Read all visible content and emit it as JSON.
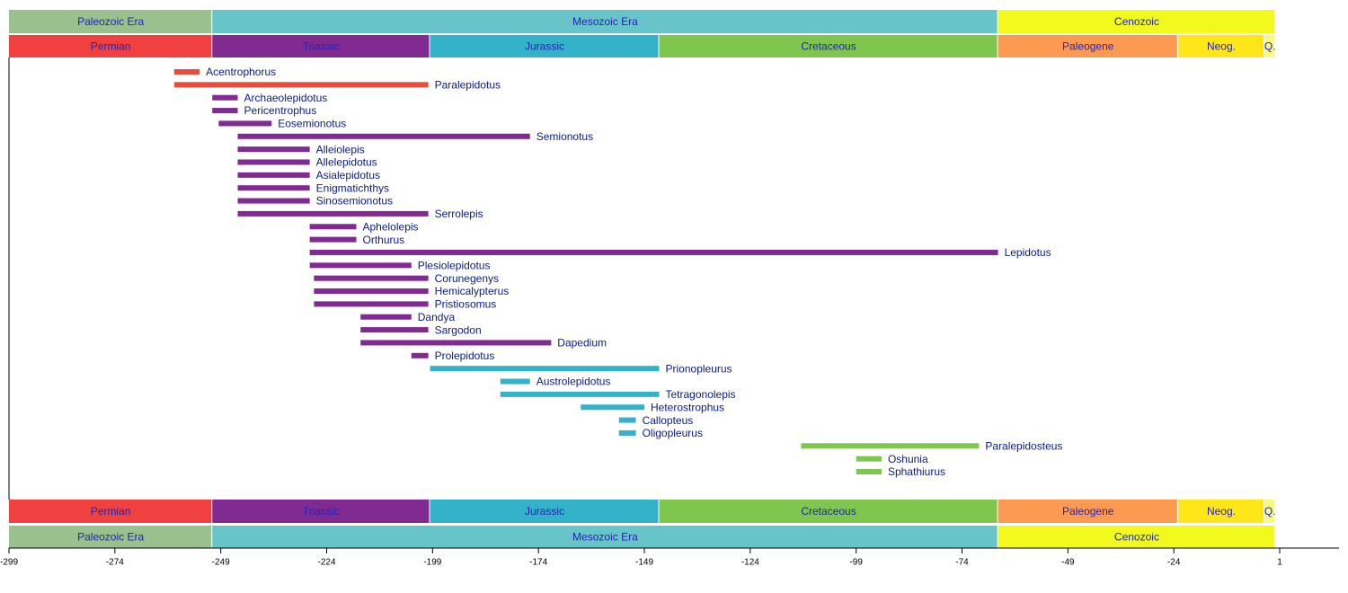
{
  "chart_data": {
    "type": "timeline",
    "xlim": [
      -299,
      15
    ],
    "xticks": [
      -299,
      -274,
      -249,
      -224,
      -199,
      -174,
      -149,
      -124,
      -99,
      -74,
      -49,
      -24,
      1
    ],
    "eras": [
      {
        "name": "Paleozoic Era",
        "start": -299,
        "end": -251,
        "color": "#99c08d"
      },
      {
        "name": "Mesozoic Era",
        "start": -251,
        "end": -65.5,
        "color": "#67c5ca"
      },
      {
        "name": "Cenozoic",
        "start": -65.5,
        "end": 0,
        "color": "#f2f91d"
      }
    ],
    "periods": [
      {
        "name": "Permian",
        "start": -299,
        "end": -251,
        "color": "#f04040"
      },
      {
        "name": "Triassic",
        "start": -251,
        "end": -199.6,
        "color": "#812b92"
      },
      {
        "name": "Jurassic",
        "start": -199.6,
        "end": -145.5,
        "color": "#34b2c9"
      },
      {
        "name": "Cretaceous",
        "start": -145.5,
        "end": -65.5,
        "color": "#7fc64e"
      },
      {
        "name": "Paleogene",
        "start": -65.5,
        "end": -23,
        "color": "#fd9a52"
      },
      {
        "name": "Neog.",
        "start": -23,
        "end": -2.6,
        "color": "#ffe619"
      },
      {
        "name": "Q.",
        "start": -2.6,
        "end": 0,
        "color": "#f9f97f"
      }
    ],
    "taxa": [
      {
        "name": "Acentrophorus",
        "start": -260,
        "end": -254,
        "color": "#e84c3d"
      },
      {
        "name": "Paralepidotus",
        "start": -260,
        "end": -200,
        "color": "#e84c3d"
      },
      {
        "name": "Archaeolepidotus",
        "start": -251,
        "end": -245,
        "color": "#812b92"
      },
      {
        "name": "Pericentrophus",
        "start": -251,
        "end": -245,
        "color": "#812b92"
      },
      {
        "name": "Eosemionotus",
        "start": -249.5,
        "end": -237,
        "color": "#812b92"
      },
      {
        "name": "Semionotus",
        "start": -245,
        "end": -176,
        "color": "#812b92"
      },
      {
        "name": "Alleiolepis",
        "start": -245,
        "end": -228,
        "color": "#812b92"
      },
      {
        "name": "Allelepidotus",
        "start": -245,
        "end": -228,
        "color": "#812b92"
      },
      {
        "name": "Asialepidotus",
        "start": -245,
        "end": -228,
        "color": "#812b92"
      },
      {
        "name": "Enigmatichthys",
        "start": -245,
        "end": -228,
        "color": "#812b92"
      },
      {
        "name": "Sinosemionotus",
        "start": -245,
        "end": -228,
        "color": "#812b92"
      },
      {
        "name": "Serrolepis",
        "start": -245,
        "end": -200,
        "color": "#812b92"
      },
      {
        "name": "Aphelolepis",
        "start": -228,
        "end": -217,
        "color": "#812b92"
      },
      {
        "name": "Orthurus",
        "start": -228,
        "end": -217,
        "color": "#812b92"
      },
      {
        "name": "Lepidotus",
        "start": -228,
        "end": -65.5,
        "color": "#812b92"
      },
      {
        "name": "Plesiolepidotus",
        "start": -228,
        "end": -204,
        "color": "#812b92"
      },
      {
        "name": "Corunegenys",
        "start": -227,
        "end": -200,
        "color": "#812b92"
      },
      {
        "name": "Hemicalypterus",
        "start": -227,
        "end": -200,
        "color": "#812b92"
      },
      {
        "name": "Pristiosomus",
        "start": -227,
        "end": -200,
        "color": "#812b92"
      },
      {
        "name": "Dandya",
        "start": -216,
        "end": -204,
        "color": "#812b92"
      },
      {
        "name": "Sargodon",
        "start": -216,
        "end": -200,
        "color": "#812b92"
      },
      {
        "name": "Dapedium",
        "start": -216,
        "end": -171,
        "color": "#812b92"
      },
      {
        "name": "Prolepidotus",
        "start": -204,
        "end": -200,
        "color": "#812b92"
      },
      {
        "name": "Prionopleurus",
        "start": -199.6,
        "end": -145.5,
        "color": "#34b2c9"
      },
      {
        "name": "Austrolepidotus",
        "start": -183,
        "end": -176,
        "color": "#34b2c9"
      },
      {
        "name": "Tetragonolepis",
        "start": -183,
        "end": -145.5,
        "color": "#34b2c9"
      },
      {
        "name": "Heterostrophus",
        "start": -164,
        "end": -149,
        "color": "#34b2c9"
      },
      {
        "name": "Callopteus",
        "start": -155,
        "end": -151,
        "color": "#34b2c9"
      },
      {
        "name": "Oligopleurus",
        "start": -155,
        "end": -151,
        "color": "#34b2c9"
      },
      {
        "name": "Paralepidosteus",
        "start": -112,
        "end": -70,
        "color": "#7fc64e"
      },
      {
        "name": "Oshunia",
        "start": -99,
        "end": -93,
        "color": "#7fc64e"
      },
      {
        "name": "Sphathiurus",
        "start": -99,
        "end": -93,
        "color": "#7fc64e"
      }
    ]
  }
}
